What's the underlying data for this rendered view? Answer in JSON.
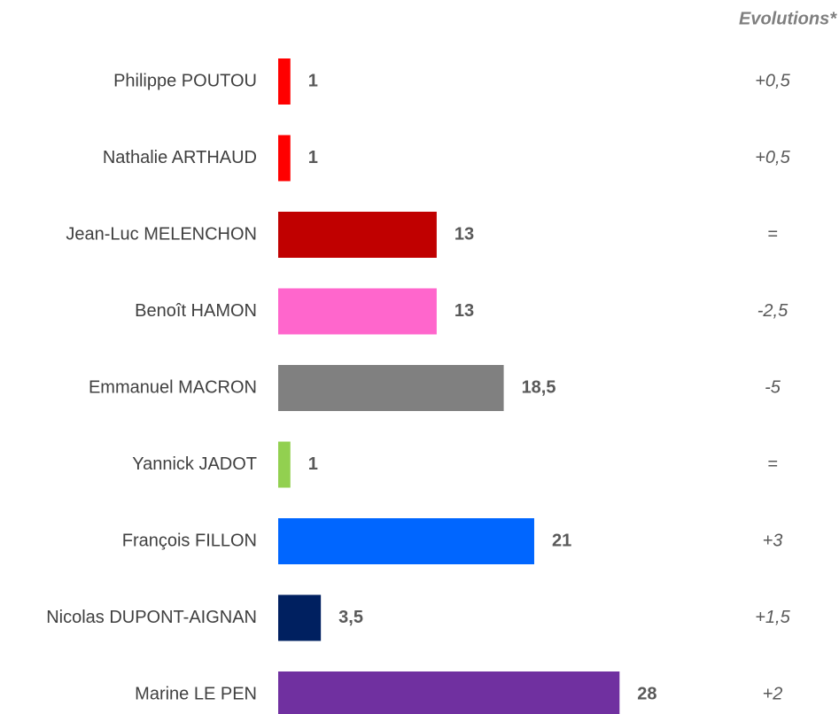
{
  "chart_data": {
    "type": "hbar",
    "categories": [
      "Philippe POUTOU",
      "Nathalie ARTHAUD",
      "Jean-Luc MELENCHON",
      "Benoît HAMON",
      "Emmanuel MACRON",
      "Yannick JADOT",
      "François FILLON",
      "Nicolas DUPONT-AIGNAN",
      "Marine LE PEN"
    ],
    "values": [
      1,
      1,
      13,
      13,
      18.5,
      1,
      21,
      3.5,
      28
    ],
    "value_labels": [
      "1",
      "1",
      "13",
      "13",
      "18,5",
      "1",
      "21",
      "3,5",
      "28"
    ],
    "colors": [
      "#ff0000",
      "#ff0000",
      "#c00000",
      "#ff66cc",
      "#808080",
      "#92d050",
      "#0066ff",
      "#002060",
      "#7030a0"
    ],
    "xlim": [
      0,
      46
    ],
    "evolutions_title": "Evolutions*",
    "evolutions": [
      "+0,5",
      "+0,5",
      "=",
      "-2,5",
      "-5",
      "=",
      "+3",
      "+1,5",
      "+2"
    ]
  }
}
